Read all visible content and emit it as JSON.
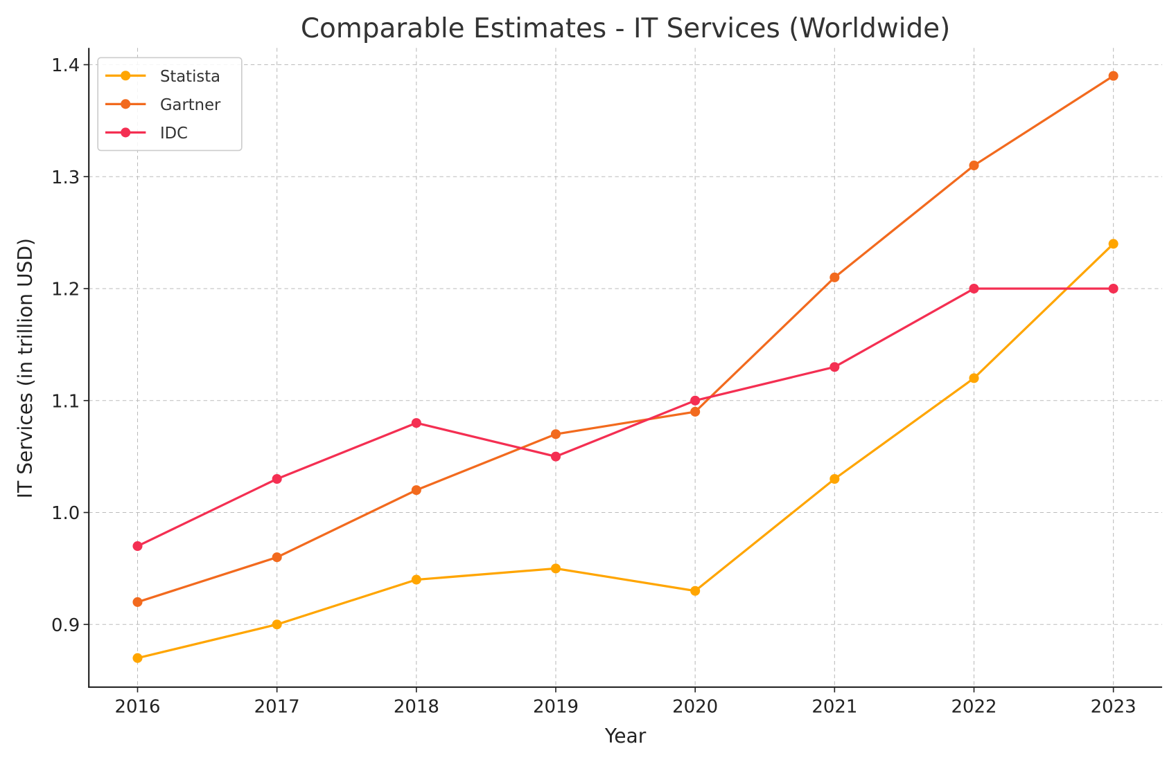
{
  "chart_data": {
    "type": "line",
    "title": "Comparable Estimates - IT Services (Worldwide)",
    "xlabel": "Year",
    "ylabel": "IT Services (in trillion USD)",
    "x": [
      2016,
      2017,
      2018,
      2019,
      2020,
      2021,
      2022,
      2023
    ],
    "xticks": [
      "2016",
      "2017",
      "2018",
      "2019",
      "2020",
      "2021",
      "2022",
      "2023"
    ],
    "yticks": [
      "0.9",
      "1.0",
      "1.1",
      "1.2",
      "1.3",
      "1.4"
    ],
    "ylim": [
      0.844,
      1.415
    ],
    "grid": true,
    "legend_position": "top-left",
    "marker": "circle",
    "series": [
      {
        "name": "Statista",
        "color": "#FFA500",
        "values": [
          0.87,
          0.9,
          0.94,
          0.95,
          0.93,
          1.03,
          1.12,
          1.24
        ]
      },
      {
        "name": "Gartner",
        "color": "#F26A1E",
        "values": [
          0.92,
          0.96,
          1.02,
          1.07,
          1.09,
          1.21,
          1.31,
          1.39
        ]
      },
      {
        "name": "IDC",
        "color": "#F42F52",
        "values": [
          0.97,
          1.03,
          1.08,
          1.05,
          1.1,
          1.13,
          1.2,
          1.2
        ]
      }
    ]
  }
}
